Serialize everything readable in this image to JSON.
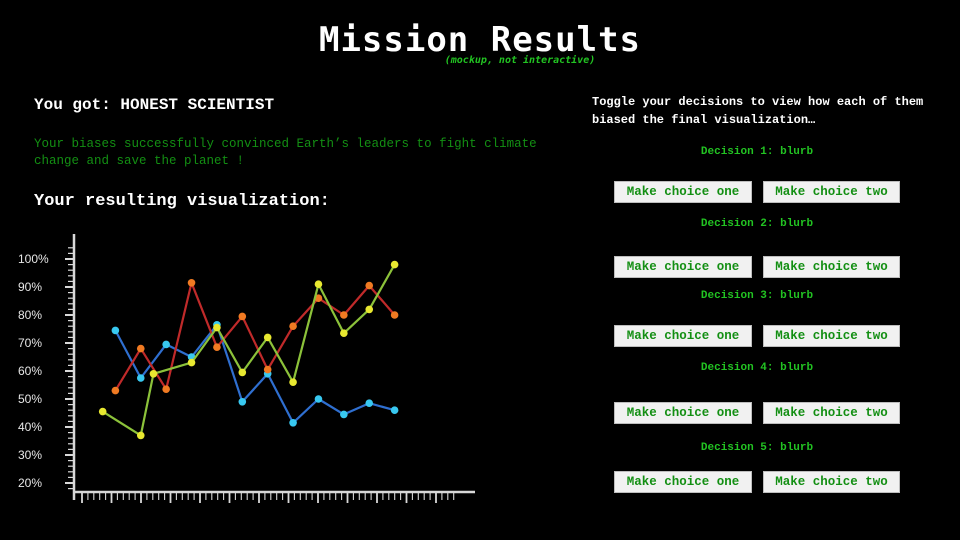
{
  "header": {
    "title": "Mission Results",
    "subtitle": "(mockup, not interactive)"
  },
  "result": {
    "heading": "You got: HONEST SCIENTIST",
    "description": "Your biases successfully convinced Earth’s leaders to fight climate change and save the planet !",
    "viz_heading": "Your resulting visualization:"
  },
  "chart_data": {
    "type": "line",
    "y_ticks": [
      "100%",
      "90%",
      "80%",
      "70%",
      "60%",
      "50%",
      "40%",
      "30%",
      "20%"
    ],
    "ylim": [
      20,
      100
    ],
    "xlim": [
      1,
      14
    ],
    "grid": false,
    "series": [
      {
        "color": "#2f6fd0",
        "marker": "#38c8f0",
        "x": [
          2,
          3,
          4,
          5,
          6,
          7,
          8,
          9,
          10,
          11,
          12,
          13
        ],
        "y": [
          74.5,
          57.5,
          69.5,
          65,
          76.5,
          49,
          59,
          41.5,
          50,
          44.5,
          48.5,
          46
        ]
      },
      {
        "color": "#c02a2a",
        "marker": "#f07a22",
        "x": [
          2,
          3,
          4,
          5,
          6,
          7,
          8,
          9,
          10,
          11,
          12,
          13
        ],
        "y": [
          53,
          68,
          53.5,
          91.5,
          68.5,
          79.5,
          60.5,
          76,
          86,
          80,
          90.5,
          80
        ]
      },
      {
        "color": "#8cc23a",
        "marker": "#e8e830",
        "x": [
          1.5,
          3,
          3.5,
          5,
          6,
          7,
          8,
          9,
          10,
          11,
          12,
          13
        ],
        "y": [
          45.5,
          37,
          59,
          63,
          75.5,
          59.5,
          72,
          56,
          91,
          73.5,
          82,
          98
        ]
      }
    ]
  },
  "panel": {
    "instructions": "Toggle your decisions to view how each of them biased the final visualization…",
    "decisions": [
      {
        "label": "Decision 1: blurb",
        "choice_one": "Make choice one",
        "choice_two": "Make choice two"
      },
      {
        "label": "Decision 2: blurb",
        "choice_one": "Make choice one",
        "choice_two": "Make choice two"
      },
      {
        "label": "Decision 3: blurb",
        "choice_one": "Make choice one",
        "choice_two": "Make choice two"
      },
      {
        "label": "Decision 4: blurb",
        "choice_one": "Make choice one",
        "choice_two": "Make choice two"
      },
      {
        "label": "Decision 5: blurb",
        "choice_one": "Make choice one",
        "choice_two": "Make choice two"
      }
    ]
  }
}
